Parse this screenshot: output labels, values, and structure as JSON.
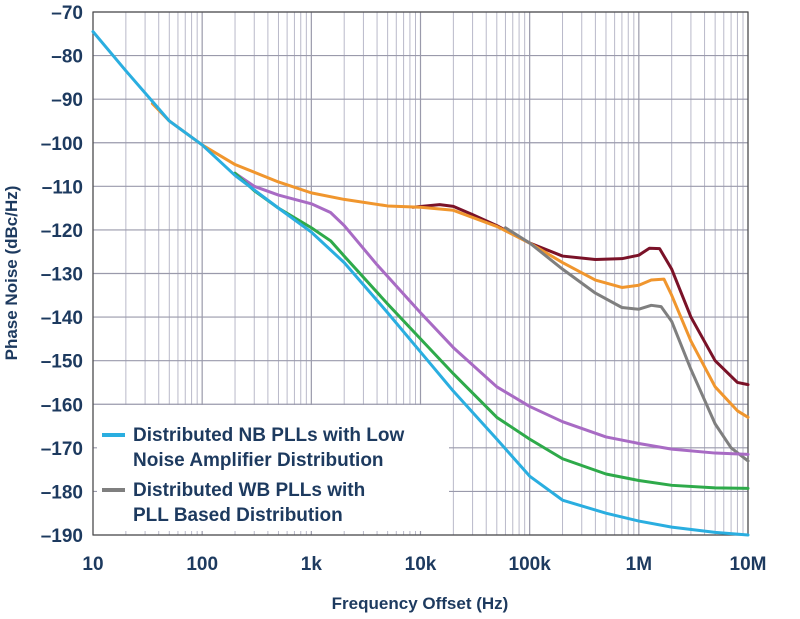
{
  "chart_data": {
    "type": "line",
    "xlabel": "Frequency Offset (Hz)",
    "ylabel": "Phase Noise (dBc/Hz)",
    "x_scale": "log",
    "xlim": [
      10,
      10000000
    ],
    "ylim": [
      -190,
      -70
    ],
    "x_tick_values": [
      10,
      100,
      1000,
      10000,
      100000,
      1000000,
      10000000
    ],
    "x_tick_labels": [
      "10",
      "100",
      "1k",
      "10k",
      "100k",
      "1M",
      "10M"
    ],
    "y_ticks": [
      -70,
      -80,
      -90,
      -100,
      -110,
      -120,
      -130,
      -140,
      -150,
      -160,
      -170,
      -180,
      -190
    ],
    "y_tick_labels": [
      "–70",
      "–80",
      "–90",
      "–100",
      "–110",
      "–120",
      "–130",
      "–140",
      "–150",
      "–160",
      "–170",
      "–180",
      "–190"
    ],
    "grid": true,
    "legend": {
      "position": "bottom-left",
      "entries": [
        {
          "color": "#2aaee0",
          "lines": [
            "Distributed NB PLLs with Low",
            "Noise Amplifier Distribution"
          ]
        },
        {
          "color": "#7f7f7f",
          "lines": [
            "Distributed WB PLLs with",
            "PLL Based Distribution"
          ]
        }
      ]
    },
    "series": [
      {
        "color": "#7a1228",
        "points": [
          [
            8500,
            -114.8
          ],
          [
            15000,
            -114.2
          ],
          [
            20000,
            -114.6
          ],
          [
            30000,
            -116.5
          ],
          [
            50000,
            -119
          ],
          [
            100000,
            -123
          ],
          [
            200000,
            -126
          ],
          [
            400000,
            -126.8
          ],
          [
            700000,
            -126.6
          ],
          [
            1000000,
            -125.8
          ],
          [
            1250000,
            -124.2
          ],
          [
            1550000,
            -124.3
          ],
          [
            2000000,
            -129
          ],
          [
            3000000,
            -140
          ],
          [
            5000000,
            -150
          ],
          [
            8000000,
            -155
          ],
          [
            10000000,
            -155.5
          ]
        ]
      },
      {
        "color": "#f0962e",
        "points": [
          [
            35,
            -91
          ],
          [
            50,
            -95
          ],
          [
            100,
            -100.5
          ],
          [
            200,
            -105
          ],
          [
            500,
            -109
          ],
          [
            1000,
            -111.5
          ],
          [
            2000,
            -113
          ],
          [
            5000,
            -114.5
          ],
          [
            10000,
            -114.8
          ],
          [
            20000,
            -115.5
          ],
          [
            50000,
            -119.2
          ],
          [
            100000,
            -123
          ],
          [
            200000,
            -127.5
          ],
          [
            400000,
            -131.5
          ],
          [
            700000,
            -133.2
          ],
          [
            1000000,
            -132.7
          ],
          [
            1300000,
            -131.5
          ],
          [
            1700000,
            -131.3
          ],
          [
            2000000,
            -135
          ],
          [
            3000000,
            -145.5
          ],
          [
            5000000,
            -156
          ],
          [
            8000000,
            -161.5
          ],
          [
            10000000,
            -163
          ]
        ]
      },
      {
        "color": "#7f7f7f",
        "points": [
          [
            60000,
            -119.5
          ],
          [
            100000,
            -123
          ],
          [
            200000,
            -129
          ],
          [
            400000,
            -134.5
          ],
          [
            700000,
            -137.8
          ],
          [
            1000000,
            -138.2
          ],
          [
            1300000,
            -137.3
          ],
          [
            1600000,
            -137.6
          ],
          [
            2000000,
            -141
          ],
          [
            3000000,
            -152
          ],
          [
            5000000,
            -164.5
          ],
          [
            7000000,
            -170
          ],
          [
            10000000,
            -173
          ]
        ]
      },
      {
        "color": "#a86bc4",
        "points": [
          [
            200,
            -107
          ],
          [
            300,
            -110
          ],
          [
            500,
            -112
          ],
          [
            1000,
            -114
          ],
          [
            1500,
            -116
          ],
          [
            2000,
            -119
          ],
          [
            4000,
            -128
          ],
          [
            10000,
            -139
          ],
          [
            20000,
            -147
          ],
          [
            50000,
            -156
          ],
          [
            100000,
            -160.5
          ],
          [
            200000,
            -164
          ],
          [
            500000,
            -167.5
          ],
          [
            1000000,
            -169
          ],
          [
            2000000,
            -170.3
          ],
          [
            5000000,
            -171.2
          ],
          [
            10000000,
            -171.5
          ]
        ]
      },
      {
        "color": "#2eaa4a",
        "points": [
          [
            200,
            -107
          ],
          [
            300,
            -111
          ],
          [
            500,
            -115
          ],
          [
            1000,
            -119.5
          ],
          [
            1500,
            -122.5
          ],
          [
            2000,
            -126
          ],
          [
            5000,
            -137
          ],
          [
            10000,
            -145
          ],
          [
            20000,
            -153
          ],
          [
            50000,
            -163
          ],
          [
            100000,
            -168
          ],
          [
            200000,
            -172.5
          ],
          [
            500000,
            -176
          ],
          [
            1000000,
            -177.5
          ],
          [
            2000000,
            -178.6
          ],
          [
            5000000,
            -179.2
          ],
          [
            10000000,
            -179.3
          ]
        ]
      },
      {
        "color": "#2aaee0",
        "points": [
          [
            10,
            -74.5
          ],
          [
            20,
            -83.5
          ],
          [
            35,
            -90.5
          ],
          [
            50,
            -95
          ],
          [
            100,
            -100.5
          ],
          [
            200,
            -107.5
          ],
          [
            500,
            -115
          ],
          [
            1000,
            -120.5
          ],
          [
            2000,
            -127.5
          ],
          [
            5000,
            -139
          ],
          [
            10000,
            -148
          ],
          [
            20000,
            -157
          ],
          [
            50000,
            -168
          ],
          [
            100000,
            -176.5
          ],
          [
            200000,
            -182
          ],
          [
            500000,
            -185
          ],
          [
            1000000,
            -186.8
          ],
          [
            2000000,
            -188.2
          ],
          [
            5000000,
            -189.4
          ],
          [
            10000000,
            -190
          ]
        ]
      }
    ]
  }
}
